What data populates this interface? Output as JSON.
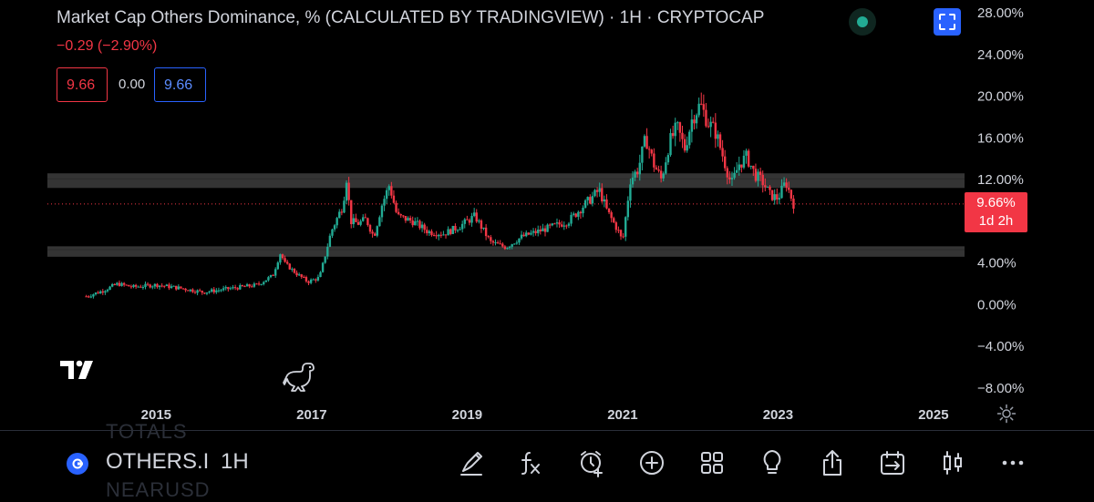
{
  "header": {
    "title": "Market Cap Others Dominance, % (CALCULATED BY TRADINGVIEW) · 1H · CRYPTOCAP",
    "change": "−0.29 (−2.90%)",
    "bid": "9.66",
    "spread": "0.00",
    "ask": "9.66"
  },
  "price_tag": {
    "price": "9.66%",
    "countdown": "1d 2h"
  },
  "colors": {
    "up": "#22ab94",
    "down": "#f23645",
    "accent": "#2962ff",
    "background": "#000000",
    "zone": "#3a3a3a"
  },
  "chart_data": {
    "type": "line",
    "title": "",
    "ylim": [
      -8,
      28
    ],
    "xlim": [
      2013.6,
      2025.4
    ],
    "y_ticks": [
      "28.00%",
      "24.00%",
      "20.00%",
      "16.00%",
      "12.00%",
      "8.00%",
      "4.00%",
      "0.00%",
      "−4.00%",
      "−8.00%"
    ],
    "y_tick_values": [
      28,
      24,
      20,
      16,
      12,
      8,
      4,
      0,
      -4,
      -8
    ],
    "x_ticks": [
      "2015",
      "2017",
      "2019",
      "2021",
      "2023",
      "2025"
    ],
    "x_tick_values": [
      2015,
      2017,
      2019,
      2021,
      2023,
      2025
    ],
    "last_price": 9.66,
    "zones": [
      [
        11.2,
        12.6
      ],
      [
        4.6,
        5.6
      ]
    ],
    "series": [
      {
        "x": [
          2014.1,
          2014.3,
          2014.5,
          2014.7,
          2015.0,
          2015.3,
          2015.6,
          2015.9,
          2016.1,
          2016.3,
          2016.5,
          2016.6,
          2016.65,
          2016.8,
          2016.95,
          2017.1,
          2017.2,
          2017.25,
          2017.4,
          2017.45,
          2017.5,
          2017.6,
          2017.7,
          2017.8,
          2017.9,
          2018.0,
          2018.1,
          2018.3,
          2018.5,
          2018.7,
          2018.9,
          2019.1,
          2019.3,
          2019.5,
          2019.7,
          2019.9,
          2020.1,
          2020.3,
          2020.5,
          2020.7,
          2020.8,
          2020.95,
          2021.0,
          2021.1,
          2021.2,
          2021.3,
          2021.4,
          2021.5,
          2021.6,
          2021.7,
          2021.8,
          2021.9,
          2022.0,
          2022.1,
          2022.2,
          2022.3,
          2022.4,
          2022.5,
          2022.6,
          2022.7,
          2022.8,
          2022.9,
          2023.0,
          2023.1,
          2023.2
        ],
        "y": [
          0.8,
          1.3,
          2.0,
          1.7,
          1.9,
          1.6,
          1.2,
          1.5,
          1.7,
          1.9,
          2.8,
          5.0,
          4.0,
          3.0,
          2.2,
          2.6,
          5.5,
          7.0,
          9.5,
          12.3,
          8.0,
          7.8,
          8.2,
          6.5,
          9.5,
          11.5,
          8.5,
          8.0,
          7.0,
          6.8,
          7.5,
          8.5,
          6.0,
          5.5,
          6.5,
          7.0,
          7.5,
          8.0,
          9.5,
          11.0,
          9.0,
          7.0,
          6.0,
          12.0,
          13.0,
          16.0,
          13.5,
          12.0,
          15.5,
          17.0,
          15.0,
          18.0,
          19.2,
          17.5,
          16.5,
          14.0,
          11.5,
          13.5,
          14.2,
          12.5,
          11.8,
          10.5,
          10.2,
          11.8,
          9.66
        ]
      }
    ]
  },
  "bottom_bar": {
    "symbol": "OTHERS.D",
    "symbol_display": "OTHERS.I",
    "interval": "1H",
    "ghost_top": "TOTALS",
    "ghost_bottom": "NEARUSD",
    "tools": [
      "draw-icon",
      "indicators-icon",
      "alert-icon",
      "add-icon",
      "layouts-icon",
      "ideas-icon",
      "share-icon",
      "replay-icon",
      "chart-type-icon",
      "more-icon"
    ]
  }
}
